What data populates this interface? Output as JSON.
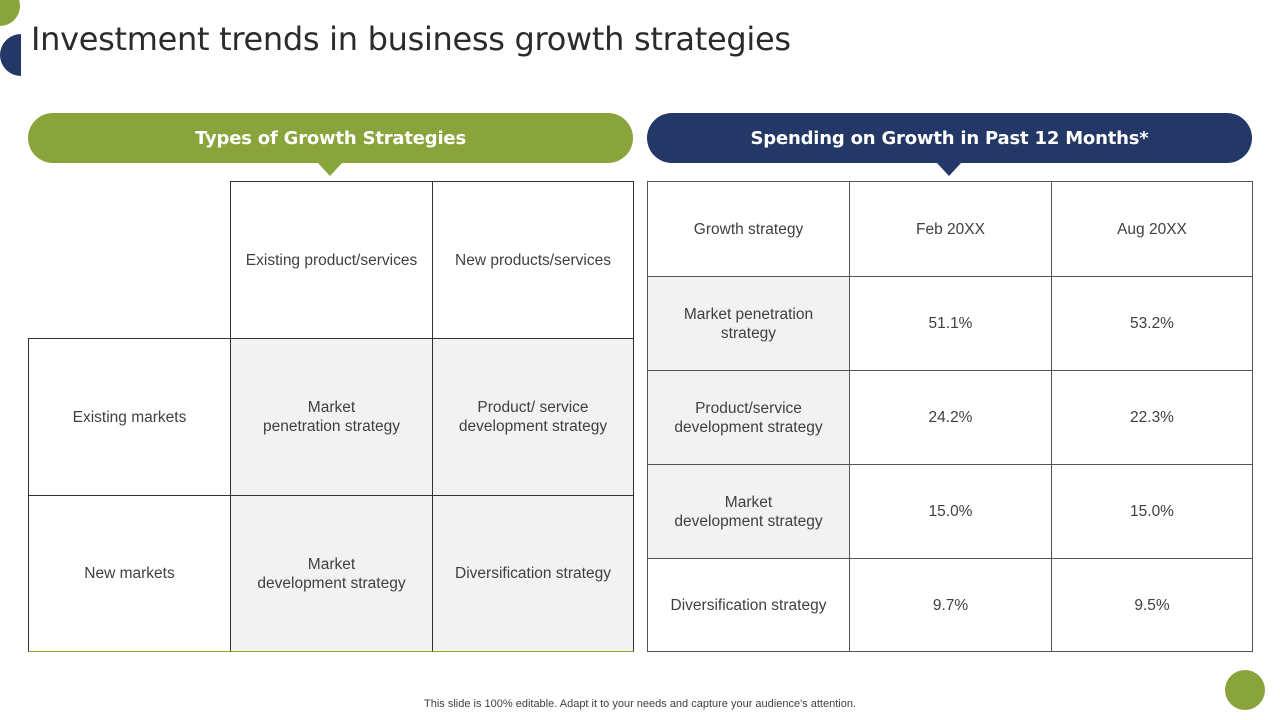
{
  "slide": {
    "title": "Investment trends in business growth strategies",
    "footer": "This slide is 100% editable. Adapt it to your needs and capture your audience's attention."
  },
  "colors": {
    "green": "#8aa43c",
    "navy": "#233866",
    "shade": "#f2f2f2"
  },
  "left_panel": {
    "heading": "Types of Growth Strategies",
    "column_headers": [
      "Existing product/services",
      "New products/services"
    ],
    "rows": [
      {
        "label": "Existing markets",
        "cells": [
          "Market\npenetration strategy",
          "Product/ service\ndevelopment strategy"
        ]
      },
      {
        "label": "New markets",
        "cells": [
          "Market\ndevelopment strategy",
          "Diversification strategy"
        ]
      }
    ]
  },
  "right_panel": {
    "heading": "Spending on Growth in Past 12 Months*",
    "headers": [
      "Growth strategy",
      "Feb 20XX",
      "Aug 20XX"
    ],
    "rows": [
      [
        "Market penetration\nstrategy",
        "51.1%",
        "53.2%"
      ],
      [
        "Product/service\ndevelopment strategy",
        "24.2%",
        "22.3%"
      ],
      [
        "Market\ndevelopment strategy",
        "15.0%",
        "15.0%"
      ],
      [
        "Diversification strategy",
        "9.7%",
        "9.5%"
      ]
    ]
  }
}
